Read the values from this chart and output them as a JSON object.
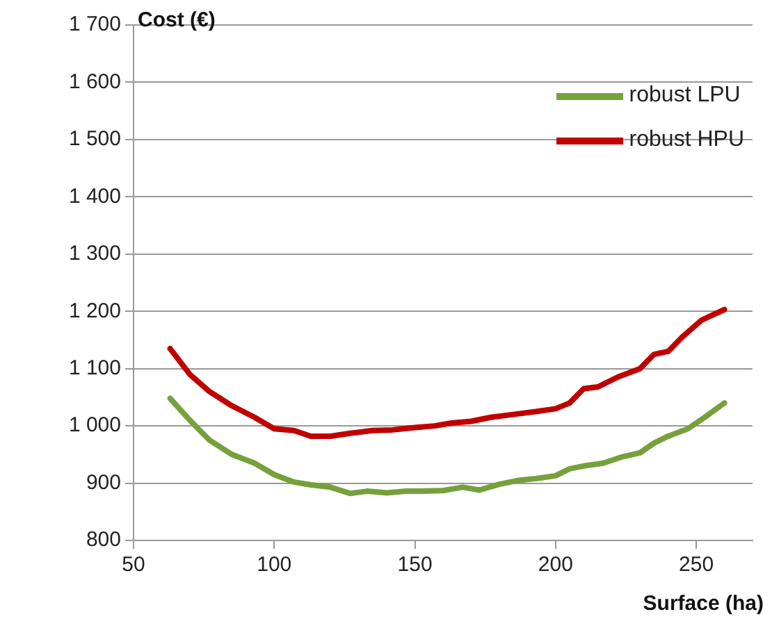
{
  "chart_data": {
    "type": "line",
    "ylabel": "Cost (€)",
    "xlabel": "Surface (ha)",
    "xlim": [
      50,
      270
    ],
    "xticks": [
      50,
      100,
      150,
      200,
      250
    ],
    "ylim": [
      800,
      1700
    ],
    "yticks": [
      {
        "value": 800,
        "label": "800"
      },
      {
        "value": 900,
        "label": "900"
      },
      {
        "value": 1000,
        "label": "1 000"
      },
      {
        "value": 1100,
        "label": "1 100"
      },
      {
        "value": 1200,
        "label": "1 200"
      },
      {
        "value": 1300,
        "label": "1 300"
      },
      {
        "value": 1400,
        "label": "1 400"
      },
      {
        "value": 1500,
        "label": "1 500"
      },
      {
        "value": 1600,
        "label": "1 600"
      },
      {
        "value": 1700,
        "label": "1 700"
      }
    ],
    "grid": "y",
    "legend": "top right",
    "marker": "none",
    "line_style": "solid",
    "series": [
      {
        "name": "robust LPU",
        "color": "#77a03c",
        "x": [
          63,
          70,
          77,
          85,
          93,
          100,
          107,
          113,
          120,
          127,
          133,
          140,
          147,
          153,
          160,
          167,
          173,
          180,
          187,
          193,
          200,
          205,
          210,
          217,
          223,
          230,
          235,
          240,
          247,
          253,
          260
        ],
        "values": [
          1048,
          1010,
          975,
          950,
          935,
          915,
          902,
          897,
          893,
          882,
          886,
          883,
          886,
          886,
          887,
          893,
          888,
          898,
          905,
          908,
          913,
          925,
          930,
          935,
          945,
          953,
          970,
          982,
          995,
          1015,
          1040
        ]
      },
      {
        "name": "robust HPU",
        "color": "#c00000",
        "x": [
          63,
          70,
          77,
          85,
          93,
          100,
          107,
          113,
          120,
          127,
          135,
          142,
          150,
          157,
          163,
          170,
          177,
          185,
          193,
          200,
          205,
          210,
          215,
          222,
          230,
          235,
          240,
          245,
          252,
          260
        ],
        "values": [
          1135,
          1090,
          1060,
          1035,
          1015,
          995,
          992,
          982,
          982,
          987,
          992,
          993,
          997,
          1000,
          1005,
          1008,
          1015,
          1020,
          1025,
          1030,
          1040,
          1065,
          1068,
          1085,
          1100,
          1125,
          1130,
          1155,
          1185,
          1203
        ]
      }
    ]
  }
}
